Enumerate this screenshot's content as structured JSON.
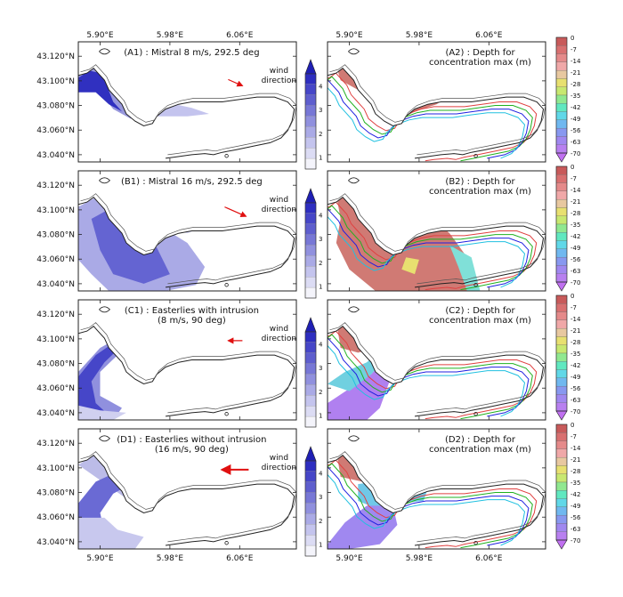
{
  "x_ticks_top": [
    "5.90°E",
    "5.98°E",
    "6.06°E"
  ],
  "x_ticks_bottom": [
    "5.90°E",
    "5.98°E",
    "6.06°E"
  ],
  "y_ticks": [
    "43.120°N",
    "43.100°N",
    "43.080°N",
    "43.060°N",
    "43.040°N"
  ],
  "wind_label": [
    "wind",
    "direction"
  ],
  "blue_colorbar": {
    "labels": [
      "4",
      "3",
      "2",
      "1"
    ],
    "colors": [
      "#f4f4fb",
      "#dcdcf4",
      "#c4c4ee",
      "#aaaae6",
      "#9090de",
      "#7777d6",
      "#5e5ece",
      "#4646c8",
      "#2e2ec0"
    ],
    "top_color": "#1f1fb4"
  },
  "depth_colorbar": {
    "labels": [
      "0",
      "-7",
      "-14",
      "-21",
      "-28",
      "-35",
      "-42",
      "-49",
      "-56",
      "-63",
      "-70"
    ],
    "colors": [
      "#c85a5a",
      "#d97070",
      "#e58a8a",
      "#f0a8a8",
      "#e8c8a0",
      "#e8e070",
      "#c8e870",
      "#90e890",
      "#60e8c0",
      "#60d8e8",
      "#70b8f0",
      "#8898f0",
      "#a088f0",
      "#b880f0"
    ]
  },
  "chart_data": [
    {
      "panel": "A1",
      "type": "heatmap",
      "title": "(A1) : Mistral 8 m/s, 292.5 deg",
      "wind_arrow": "small"
    },
    {
      "panel": "A2",
      "type": "heatmap",
      "title": [
        "(A2) : Depth for",
        "concentration max (m)"
      ]
    },
    {
      "panel": "B1",
      "type": "heatmap",
      "title": "(B1) : Mistral 16 m/s, 292.5 deg",
      "wind_arrow": "medium"
    },
    {
      "panel": "B2",
      "type": "heatmap",
      "title": [
        "(B2) : Depth for",
        "concentration max (m)"
      ]
    },
    {
      "panel": "C1",
      "type": "heatmap",
      "title": [
        "(C1) : Easterlies with intrusion",
        "(8 m/s, 90 deg)"
      ],
      "wind_arrow": "small"
    },
    {
      "panel": "C2",
      "type": "heatmap",
      "title": [
        "(C2) : Depth for",
        "concentration max (m)"
      ]
    },
    {
      "panel": "D1",
      "type": "heatmap",
      "title": [
        "(D1) : Easterlies without intrusion",
        "(16 m/s, 90 deg)"
      ],
      "wind_arrow": "large"
    },
    {
      "panel": "D2",
      "type": "heatmap",
      "title": [
        "(D2) : Depth for",
        "concentration max (m)"
      ]
    }
  ]
}
